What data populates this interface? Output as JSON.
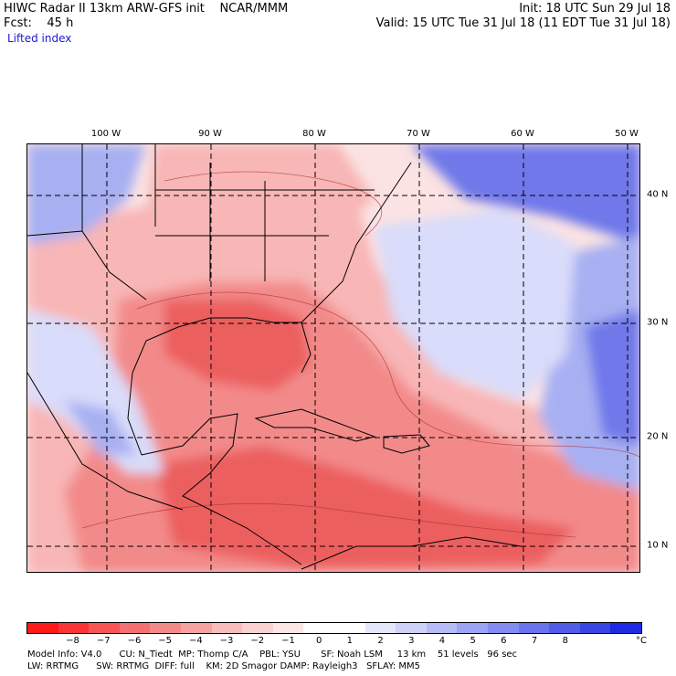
{
  "header": {
    "line1_left": "HIWC Radar II 13km ARW-GFS init    NCAR/MMM",
    "line1_right": "Init: 18 UTC Sun 29 Jul 18",
    "line2_left": "Fcst:    45 h",
    "line2_right": "Valid: 15 UTC Tue 31 Jul 18 (11 EDT Tue 31 Jul 18)",
    "field_name": "Lifted index"
  },
  "map": {
    "lon_labels": [
      "100 W",
      "90 W",
      "80 W",
      "70 W",
      "60 W",
      "50 W"
    ],
    "lat_labels": [
      "40 N",
      "30 N",
      "20 N",
      "10 N"
    ],
    "colors": {
      "ocean_pale": "#fbe3e3",
      "warm_light": "#f8b6b6",
      "warm_mid": "#f38a8a",
      "warm_strong": "#ec5f5f",
      "cool_light": "#d9dcfa",
      "cool_mid": "#a8b0f2",
      "cool_strong": "#6f78ea",
      "grid_line": "#000000",
      "coastline": "#000000"
    }
  },
  "colorbar": {
    "colors": [
      "#ff1a1a",
      "#fb3535",
      "#f85555",
      "#f57070",
      "#f38a8a",
      "#f4a2a2",
      "#f8bcbc",
      "#fbd2d2",
      "#fde6e6",
      "#ffffff",
      "#ffffff",
      "#e4e6fb",
      "#ced2f8",
      "#b5bbf5",
      "#9da4f3",
      "#838cf0",
      "#6a74ec",
      "#515ce9",
      "#3a45e6",
      "#1f2ae3"
    ],
    "labels": [
      "−8",
      "−7",
      "−6",
      "−5",
      "−4",
      "−3",
      "−2",
      "−1",
      "0",
      "1",
      "2",
      "3",
      "4",
      "5",
      "6",
      "7",
      "8"
    ],
    "unit": "°C"
  },
  "model_info": {
    "line1": "Model Info: V4.0      CU: N_Tiedt  MP: Thomp C/A    PBL: YSU       SF: Noah LSM     13 km    51 levels   96 sec",
    "line2": "LW: RRTMG      SW: RRTMG  DIFF: full    KM: 2D Smagor DAMP: Rayleigh3   SFLAY: MM5"
  }
}
